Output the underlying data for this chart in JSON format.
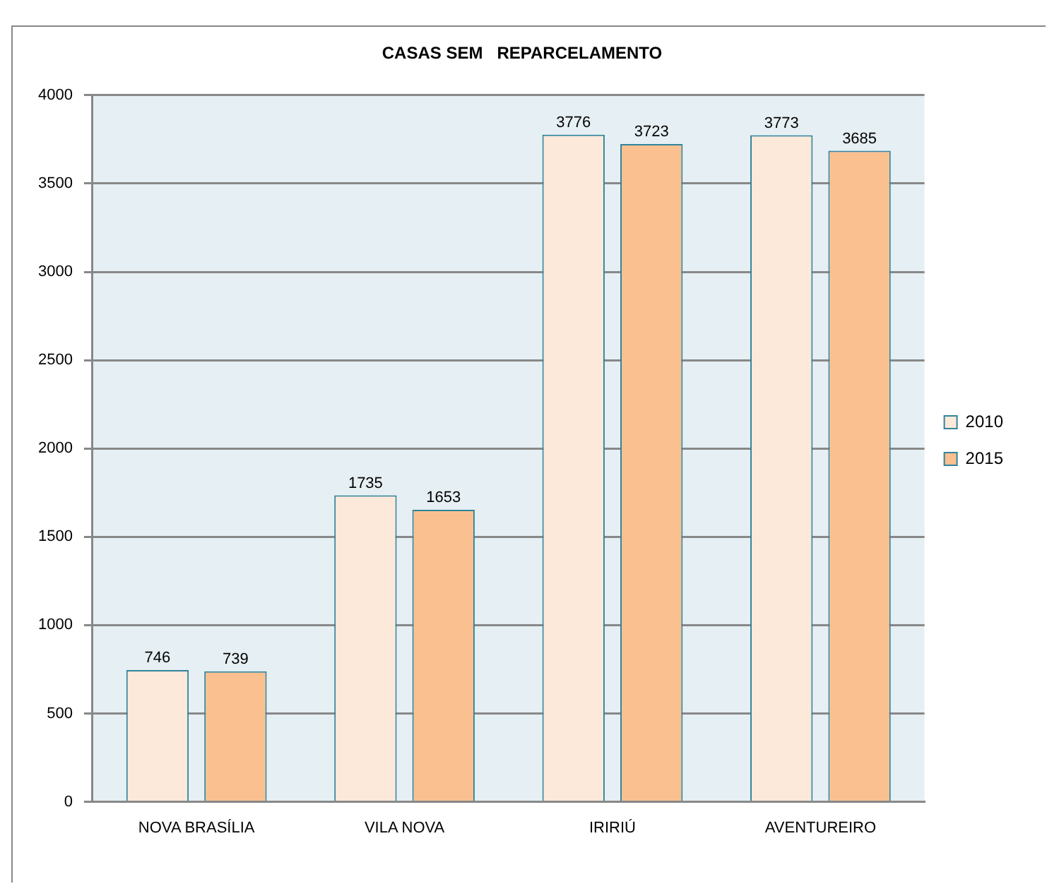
{
  "chart_data": {
    "type": "bar",
    "title": "CASAS SEM   REPARCELAMENTO",
    "categories": [
      "NOVA BRASÍLIA",
      "VILA NOVA",
      "IRIRIÚ",
      "AVENTUREIRO"
    ],
    "series": [
      {
        "name": "2010",
        "color": "#fde9d9",
        "values": [
          746,
          1735,
          3776,
          3773
        ]
      },
      {
        "name": "2015",
        "color": "#fac090",
        "values": [
          739,
          1653,
          3723,
          3685
        ]
      }
    ],
    "ylim": [
      0,
      4000
    ],
    "yticks": [
      0,
      500,
      1000,
      1500,
      2000,
      2500,
      3000,
      3500,
      4000
    ],
    "grid": "y",
    "legend": "right",
    "data_labels": true
  }
}
